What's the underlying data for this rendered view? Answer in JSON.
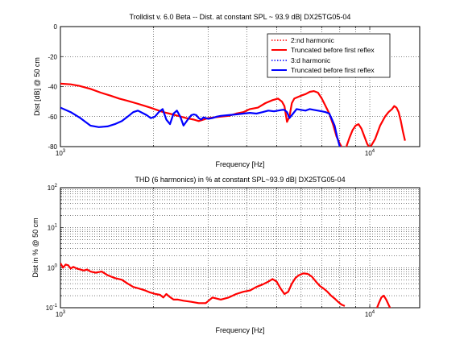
{
  "chart_data": [
    {
      "type": "line",
      "title": "Trolldist v. 6.0 Beta -- Dist. at constant SPL ~ 93.9 dB| DX25TG05-04",
      "xlabel": "Frequency [Hz]",
      "ylabel": "Dist [dB] @ 50 cm",
      "xscale": "log",
      "xlim": [
        1000,
        14500
      ],
      "ylim": [
        -80,
        0
      ],
      "yticks": [
        0,
        -20,
        -40,
        -60,
        -80
      ],
      "yticklabels": [
        "0",
        "-20",
        "-40",
        "-60",
        "-80"
      ],
      "xticks": [
        1000,
        10000
      ],
      "xticklabels": [
        {
          "base": "10",
          "exp": "3"
        },
        {
          "base": "10",
          "exp": "4"
        }
      ],
      "grid": true,
      "legend_position": "top-right",
      "series": [
        {
          "name": "2:nd harmonic",
          "color": "#ff0000",
          "style": "dotted",
          "x": [],
          "y": []
        },
        {
          "name": "Truncated before first reflex",
          "color": "#ff0000",
          "style": "solid",
          "x": [
            1000,
            1080,
            1150,
            1250,
            1350,
            1450,
            1550,
            1650,
            1750,
            1850,
            1950,
            2050,
            2150,
            2250,
            2400,
            2550,
            2700,
            2800,
            2900,
            3000,
            3150,
            3300,
            3500,
            3700,
            3900,
            4100,
            4350,
            4600,
            4850,
            5050,
            5200,
            5300,
            5400,
            5500,
            5600,
            5700,
            5850,
            6000,
            6200,
            6400,
            6600,
            6800,
            7000,
            7200,
            7400,
            7600,
            7800,
            8000,
            8200,
            8400,
            8600,
            8800,
            9000,
            9200,
            9400,
            9600,
            9800,
            10000,
            10400,
            10800,
            11200,
            11500,
            11800,
            12000,
            12200,
            12400,
            12600,
            12800,
            13000
          ],
          "y": [
            -38,
            -38.5,
            -39.5,
            -41.5,
            -44,
            -46,
            -48,
            -49.5,
            -51,
            -52.5,
            -54,
            -55.5,
            -57,
            -58,
            -59.5,
            -61,
            -62,
            -63,
            -62,
            -61,
            -60.5,
            -60,
            -59.5,
            -58,
            -57,
            -55,
            -54,
            -51,
            -49,
            -48,
            -50,
            -53,
            -63.5,
            -60,
            -51,
            -48,
            -47,
            -46,
            -45,
            -43.5,
            -43,
            -44,
            -48,
            -53,
            -58,
            -65,
            -73,
            -78,
            -82,
            -80,
            -74,
            -69,
            -66,
            -65,
            -68,
            -73,
            -78,
            -81,
            -75,
            -66,
            -60,
            -57,
            -55,
            -53,
            -54,
            -57,
            -63,
            -70,
            -76
          ]
        },
        {
          "name": "3:d harmonic",
          "color": "#0000ff",
          "style": "dotted",
          "x": [],
          "y": []
        },
        {
          "name": "Truncated before first reflex",
          "color": "#0000ff",
          "style": "solid",
          "x": [
            1000,
            1080,
            1160,
            1250,
            1330,
            1420,
            1500,
            1580,
            1650,
            1720,
            1780,
            1840,
            1900,
            1960,
            2020,
            2080,
            2140,
            2200,
            2260,
            2320,
            2380,
            2440,
            2500,
            2580,
            2650,
            2700,
            2750,
            2800,
            2850,
            2900,
            2950,
            3000,
            3100,
            3200,
            3300,
            3500,
            3700,
            3900,
            4100,
            4300,
            4500,
            4700,
            4900,
            5050,
            5200,
            5300,
            5400,
            5500,
            5650,
            5800,
            6000,
            6200,
            6400,
            6600,
            6800,
            7000,
            7200,
            7400,
            7550,
            7700,
            7850,
            8000,
            8150
          ],
          "y": [
            -54,
            -57,
            -61,
            -66,
            -67,
            -66.5,
            -65,
            -63,
            -60,
            -57,
            -56,
            -57.5,
            -59,
            -61,
            -60,
            -57,
            -55,
            -62,
            -65,
            -58,
            -56,
            -60,
            -66,
            -62,
            -59,
            -58.5,
            -59,
            -61,
            -62,
            -60.5,
            -61,
            -61.5,
            -61,
            -60,
            -59.5,
            -59,
            -58.5,
            -58,
            -57.5,
            -58,
            -57,
            -56,
            -56.5,
            -56,
            -55.5,
            -55.5,
            -57,
            -61,
            -58,
            -55,
            -55.5,
            -56,
            -55,
            -55.5,
            -56,
            -56.5,
            -57,
            -58,
            -62,
            -66,
            -74,
            -80,
            -82
          ]
        }
      ]
    },
    {
      "type": "line",
      "title": "THD (6 harmonics) in % at constant SPL~93.9 dB| DX25TG05-04",
      "xlabel": "Frequency [Hz]",
      "ylabel": "Dist in % @ 50 cm",
      "xscale": "log",
      "yscale": "log",
      "xlim": [
        1000,
        14500
      ],
      "ylim": [
        0.1,
        100
      ],
      "yticks": [
        0.1,
        1,
        10,
        100
      ],
      "yticklabels": [
        {
          "base": "10",
          "exp": "-1"
        },
        {
          "base": "10",
          "exp": "0"
        },
        {
          "base": "10",
          "exp": "1"
        },
        {
          "base": "10",
          "exp": "2"
        }
      ],
      "xticks": [
        1000,
        10000
      ],
      "xticklabels": [
        {
          "base": "10",
          "exp": "3"
        },
        {
          "base": "10",
          "exp": "4"
        }
      ],
      "grid": true,
      "series": [
        {
          "color": "#ff0000",
          "style": "solid",
          "x": [
            1000,
            1020,
            1040,
            1060,
            1080,
            1100,
            1130,
            1160,
            1190,
            1220,
            1250,
            1300,
            1360,
            1420,
            1500,
            1580,
            1650,
            1720,
            1800,
            1880,
            1950,
            2030,
            2100,
            2150,
            2200,
            2250,
            2320,
            2400,
            2500,
            2650,
            2800,
            2950,
            3100,
            3300,
            3500,
            3700,
            3900,
            4100,
            4300,
            4500,
            4700,
            4850,
            5000,
            5150,
            5300,
            5450,
            5600,
            5750,
            5900,
            6100,
            6300,
            6500,
            6700,
            6900,
            7100,
            7300,
            7500,
            7700,
            7900,
            8100,
            8300
          ],
          "y": [
            1.3,
            1.0,
            1.2,
            1.15,
            0.95,
            1.05,
            0.95,
            0.9,
            0.85,
            0.9,
            0.8,
            0.75,
            0.8,
            0.65,
            0.55,
            0.5,
            0.4,
            0.33,
            0.3,
            0.27,
            0.24,
            0.22,
            0.21,
            0.18,
            0.22,
            0.19,
            0.16,
            0.16,
            0.15,
            0.14,
            0.13,
            0.13,
            0.18,
            0.16,
            0.18,
            0.22,
            0.25,
            0.27,
            0.33,
            0.38,
            0.45,
            0.52,
            0.45,
            0.3,
            0.22,
            0.25,
            0.4,
            0.55,
            0.65,
            0.72,
            0.7,
            0.6,
            0.45,
            0.35,
            0.3,
            0.25,
            0.2,
            0.17,
            0.14,
            0.12,
            0.11
          ]
        },
        {
          "color": "#ff0000",
          "style": "solid",
          "x": [
            10500,
            10700,
            10900,
            11100,
            11300,
            11500,
            11700
          ],
          "y": [
            0.09,
            0.13,
            0.18,
            0.2,
            0.16,
            0.12,
            0.09
          ]
        }
      ]
    }
  ]
}
